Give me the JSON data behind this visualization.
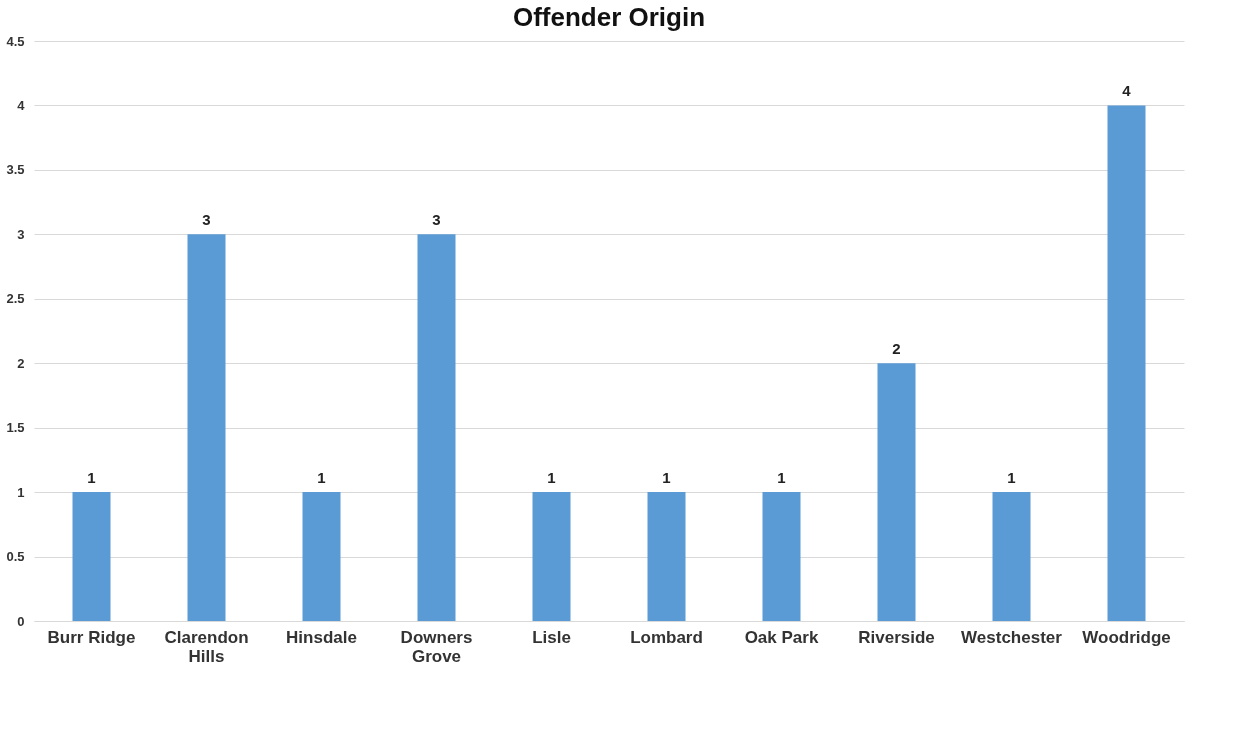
{
  "chart_data": {
    "type": "bar",
    "title": "Offender Origin",
    "categories": [
      "Burr Ridge",
      "Clarendon Hills",
      "Hinsdale",
      "Downers Grove",
      "Lisle",
      "Lombard",
      "Oak Park",
      "Riverside",
      "Westchester",
      "Woodridge"
    ],
    "values": [
      1,
      3,
      1,
      3,
      1,
      1,
      1,
      2,
      1,
      4
    ],
    "color": "#5b9bd5",
    "ylim": [
      0,
      4.5
    ],
    "yticks": [
      0,
      0.5,
      1,
      1.5,
      2,
      2.5,
      3,
      3.5,
      4,
      4.5
    ],
    "grid": "y",
    "data_labels": true
  }
}
